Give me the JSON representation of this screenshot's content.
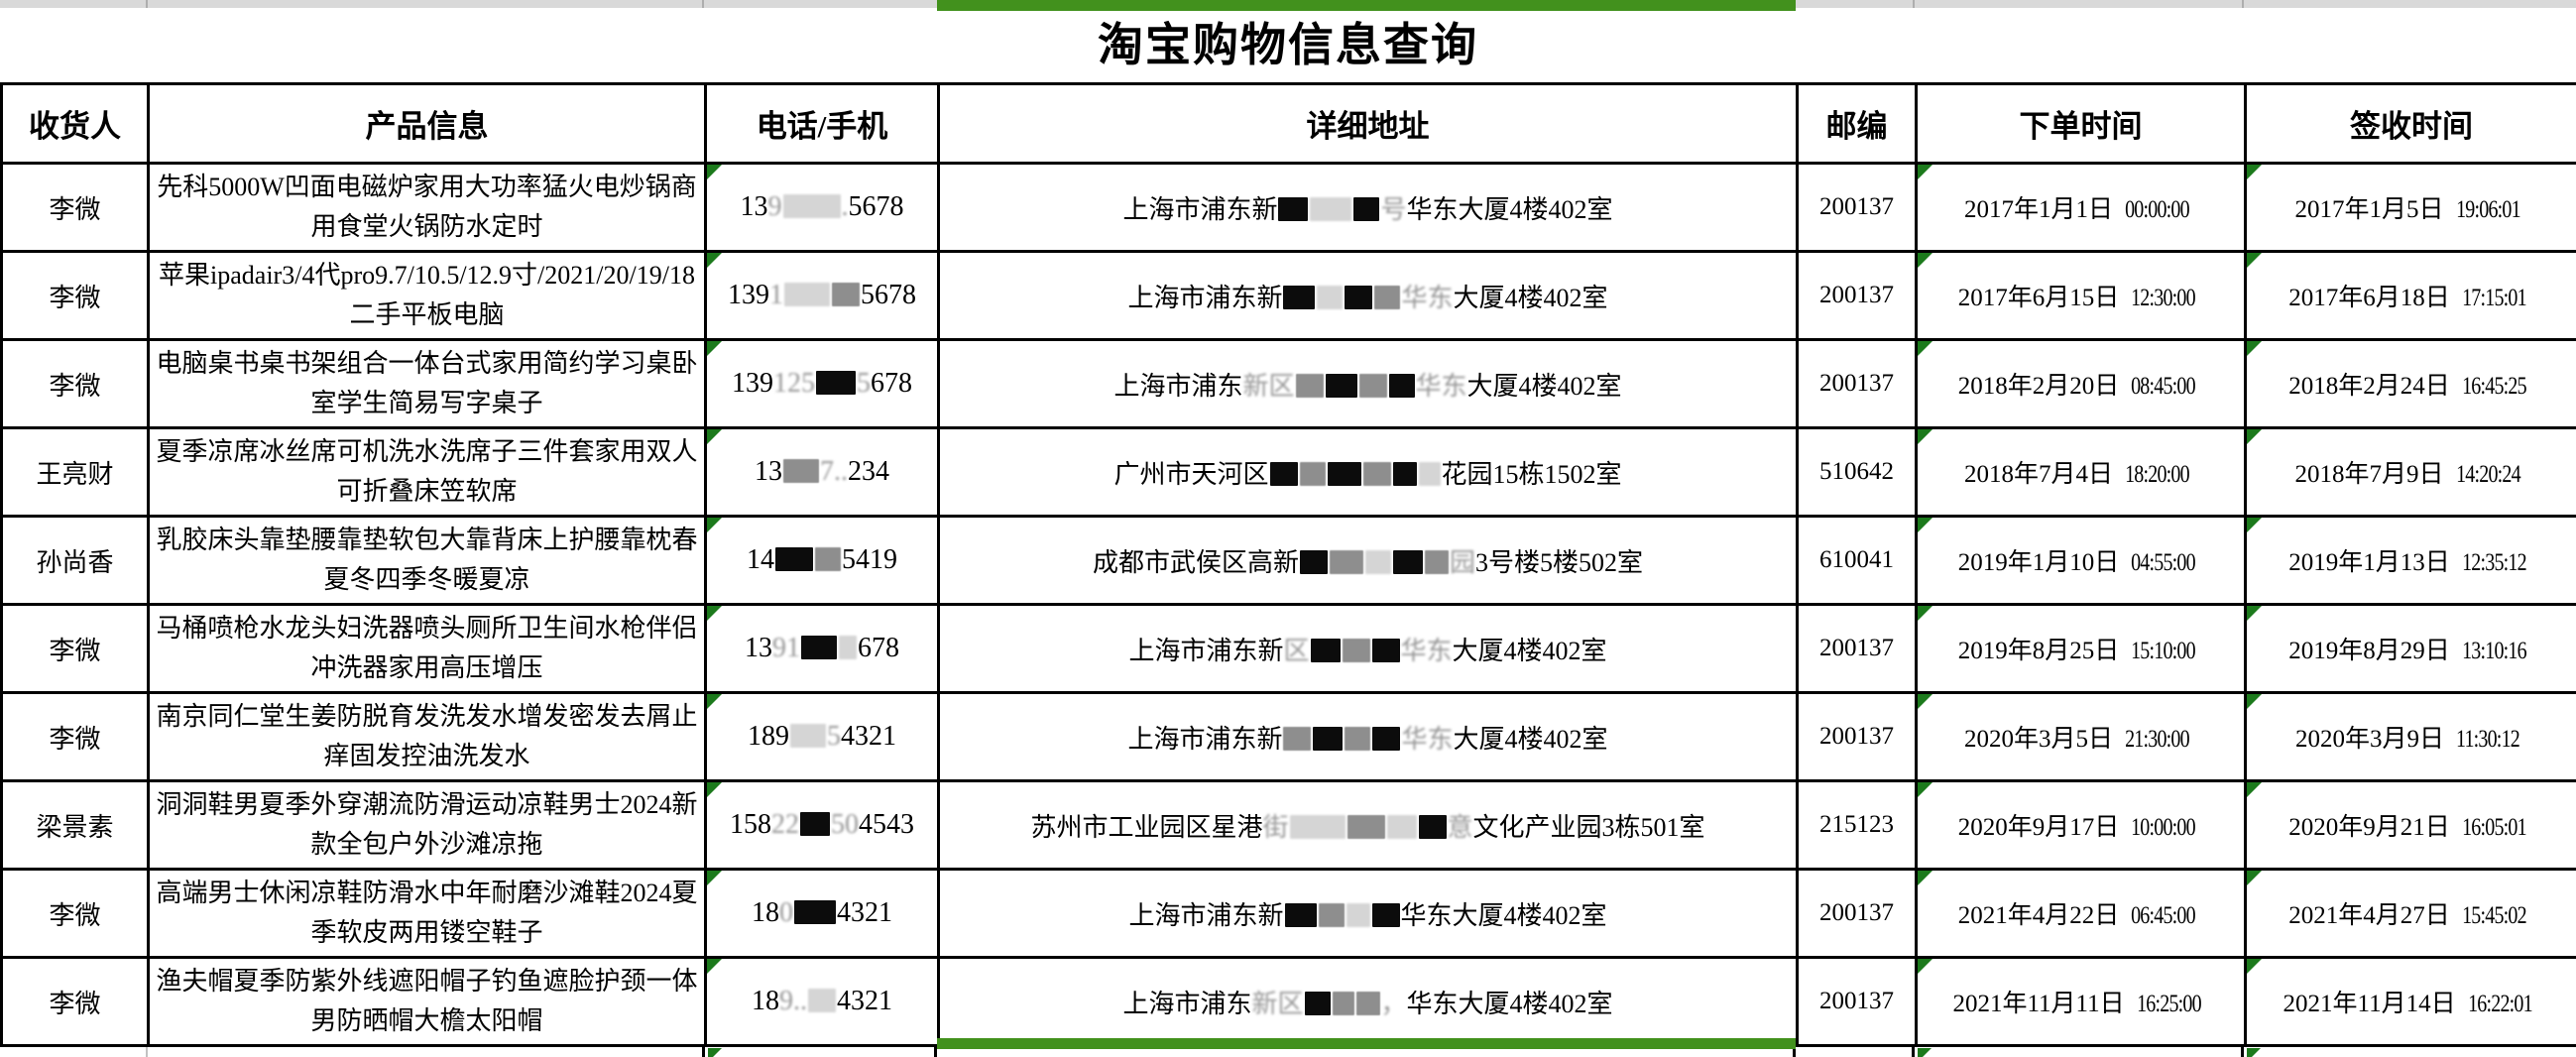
{
  "page": {
    "title": "淘宝购物信息查询"
  },
  "colors": {
    "selection_green": "#42911d",
    "triangle_green": "#1c7a1c",
    "strip_gray": "#d9d9d9",
    "border_black": "#000000"
  },
  "table": {
    "headers": [
      "收货人",
      "产品信息",
      "电话/手机",
      "详细地址",
      "邮编",
      "下单时间",
      "签收时间"
    ],
    "rows": [
      {
        "recipient": "李微",
        "product": "先科5000W凹面电磁炉家用大功率猛火电炒锅商用食堂火锅防水定时",
        "phone": [
          [
            "t",
            "13"
          ],
          [
            "f",
            "9"
          ],
          [
            "b",
            "l",
            58
          ],
          [
            "f",
            "."
          ],
          [
            "t",
            "5678"
          ]
        ],
        "address": [
          [
            "t",
            "上海市浦东新"
          ],
          [
            "b",
            "d",
            30
          ],
          [
            "b",
            "l",
            42
          ],
          [
            "b",
            "d",
            26
          ],
          [
            "f",
            "号"
          ],
          [
            "t",
            "华东大厦4楼402室"
          ]
        ],
        "postal": "200137",
        "order_time": "2017年1月1日 00:00:00",
        "sign_time": "2017年1月5日 19:06:01"
      },
      {
        "recipient": "李微",
        "product": "苹果ipadair3/4代pro9.7/10.5/12.9寸/2021/20/19/18二手平板电脑",
        "phone": [
          [
            "t",
            "139"
          ],
          [
            "f",
            "1"
          ],
          [
            "b",
            "l",
            46
          ],
          [
            "b",
            "g",
            28
          ],
          [
            "t",
            "5678"
          ]
        ],
        "address": [
          [
            "t",
            "上海市浦东新"
          ],
          [
            "b",
            "d",
            32
          ],
          [
            "b",
            "l",
            26
          ],
          [
            "b",
            "d",
            28
          ],
          [
            "b",
            "g",
            26
          ],
          [
            "f",
            "华东"
          ],
          [
            "t",
            "大厦4楼402室"
          ]
        ],
        "postal": "200137",
        "order_time": "2017年6月15日 12:30:00",
        "sign_time": "2017年6月18日 17:15:01"
      },
      {
        "recipient": "李微",
        "product": "电脑桌书桌书架组合一体台式家用简约学习桌卧室学生简易写字桌子",
        "phone": [
          [
            "t",
            "139"
          ],
          [
            "f",
            "125"
          ],
          [
            "b",
            "d",
            40
          ],
          [
            "f",
            "5"
          ],
          [
            "t",
            "678"
          ]
        ],
        "address": [
          [
            "t",
            "上海市浦东"
          ],
          [
            "f",
            "新区"
          ],
          [
            "b",
            "g",
            28
          ],
          [
            "b",
            "d",
            32
          ],
          [
            "b",
            "g",
            28
          ],
          [
            "b",
            "d",
            26
          ],
          [
            "f",
            "华东"
          ],
          [
            "t",
            "大厦4楼402室"
          ]
        ],
        "postal": "200137",
        "order_time": "2018年2月20日 08:45:00",
        "sign_time": "2018年2月24日 16:45:25"
      },
      {
        "recipient": "王亮财",
        "product": "夏季凉席冰丝席可机洗水洗席子三件套家用双人可折叠床笠软席",
        "phone": [
          [
            "t",
            "13"
          ],
          [
            "b",
            "g",
            36
          ],
          [
            "f",
            "7.."
          ],
          [
            "t",
            "234"
          ]
        ],
        "address": [
          [
            "t",
            "广州市天河区"
          ],
          [
            "b",
            "d",
            28
          ],
          [
            "b",
            "g",
            26
          ],
          [
            "b",
            "d",
            34
          ],
          [
            "b",
            "g",
            28
          ],
          [
            "b",
            "d",
            24
          ],
          [
            "b",
            "l",
            22
          ],
          [
            "t",
            "花园15栋1502室"
          ]
        ],
        "postal": "510642",
        "order_time": "2018年7月4日 18:20:00",
        "sign_time": "2018年7月9日 14:20:24"
      },
      {
        "recipient": "孙尚香",
        "product": "乳胶床头靠垫腰靠垫软包大靠背床上护腰靠枕春夏冬四季冬暖夏凉",
        "phone": [
          [
            "t",
            "14"
          ],
          [
            "b",
            "d",
            38
          ],
          [
            "b",
            "g",
            26
          ],
          [
            "t",
            "5419"
          ]
        ],
        "address": [
          [
            "t",
            "成都市武侯区高新"
          ],
          [
            "b",
            "d",
            28
          ],
          [
            "b",
            "g",
            34
          ],
          [
            "b",
            "l",
            26
          ],
          [
            "b",
            "d",
            30
          ],
          [
            "b",
            "g",
            24
          ],
          [
            "f",
            "园"
          ],
          [
            "t",
            "3号楼5楼502室"
          ]
        ],
        "postal": "610041",
        "order_time": "2019年1月10日 04:55:00",
        "sign_time": "2019年1月13日 12:35:12"
      },
      {
        "recipient": "李微",
        "product": "马桶喷枪水龙头妇洗器喷头厕所卫生间水枪伴侣冲洗器家用高压增压",
        "phone": [
          [
            "t",
            "13"
          ],
          [
            "f",
            "91"
          ],
          [
            "b",
            "d",
            36
          ],
          [
            "b",
            "l",
            18
          ],
          [
            "t",
            "678"
          ]
        ],
        "address": [
          [
            "t",
            "上海市浦东新"
          ],
          [
            "f",
            "区"
          ],
          [
            "b",
            "d",
            30
          ],
          [
            "b",
            "g",
            28
          ],
          [
            "b",
            "d",
            28
          ],
          [
            "f",
            "华东"
          ],
          [
            "t",
            "大厦4楼402室"
          ]
        ],
        "postal": "200137",
        "order_time": "2019年8月25日 15:10:00",
        "sign_time": "2019年8月29日 13:10:16"
      },
      {
        "recipient": "李微",
        "product": "南京同仁堂生姜防脱育发洗发水增发密发去屑止痒固发控油洗发水",
        "phone": [
          [
            "t",
            "189"
          ],
          [
            "b",
            "l",
            36
          ],
          [
            "f",
            "5"
          ],
          [
            "t",
            "4321"
          ]
        ],
        "address": [
          [
            "t",
            "上海市浦东新"
          ],
          [
            "b",
            "g",
            28
          ],
          [
            "b",
            "d",
            30
          ],
          [
            "b",
            "g",
            26
          ],
          [
            "b",
            "d",
            28
          ],
          [
            "f",
            "华东"
          ],
          [
            "t",
            "大厦4楼402室"
          ]
        ],
        "postal": "200137",
        "order_time": "2020年3月5日 21:30:00",
        "sign_time": "2020年3月9日 11:30:12"
      },
      {
        "recipient": "梁景素",
        "product": "洞洞鞋男夏季外穿潮流防滑运动凉鞋男士2024新款全包户外沙滩凉拖",
        "phone": [
          [
            "t",
            "158"
          ],
          [
            "f",
            "22"
          ],
          [
            "b",
            "d",
            30
          ],
          [
            "f",
            "50"
          ],
          [
            "t",
            "4543"
          ]
        ],
        "address": [
          [
            "t",
            "苏州市工业园区星港"
          ],
          [
            "f",
            "街"
          ],
          [
            "b",
            "l",
            56
          ],
          [
            "b",
            "g",
            38
          ],
          [
            "b",
            "l",
            30
          ],
          [
            "b",
            "d",
            28
          ],
          [
            "f",
            "意"
          ],
          [
            "t",
            "文化产业园3栋501室"
          ]
        ],
        "postal": "215123",
        "order_time": "2020年9月17日 10:00:00",
        "sign_time": "2020年9月21日 16:05:01"
      },
      {
        "recipient": "李微",
        "product": "高端男士休闲凉鞋防滑水中年耐磨沙滩鞋2024夏季软皮两用镂空鞋子",
        "phone": [
          [
            "t",
            "18"
          ],
          [
            "f",
            "0"
          ],
          [
            "b",
            "d",
            42
          ],
          [
            "t",
            "4321"
          ]
        ],
        "address": [
          [
            "t",
            "上海市浦东新"
          ],
          [
            "b",
            "d",
            32
          ],
          [
            "b",
            "g",
            26
          ],
          [
            "b",
            "l",
            24
          ],
          [
            "b",
            "d",
            28
          ],
          [
            "t",
            "华东大厦4楼402室"
          ]
        ],
        "postal": "200137",
        "order_time": "2021年4月22日 06:45:00",
        "sign_time": "2021年4月27日 15:45:02"
      },
      {
        "recipient": "李微",
        "product": "渔夫帽夏季防紫外线遮阳帽子钓鱼遮脸护颈一体男防晒帽大檐太阳帽",
        "phone": [
          [
            "t",
            "18"
          ],
          [
            "f",
            "9.."
          ],
          [
            "b",
            "l",
            28
          ],
          [
            "t",
            "4321"
          ]
        ],
        "address": [
          [
            "t",
            "上海市浦东"
          ],
          [
            "f",
            "新区"
          ],
          [
            "b",
            "d",
            26
          ],
          [
            "b",
            "g",
            22
          ],
          [
            "b",
            "g",
            24
          ],
          [
            "f",
            "，"
          ],
          [
            "t",
            "华东大厦4楼402室"
          ]
        ],
        "postal": "200137",
        "order_time": "2021年11月11日 16:25:00",
        "sign_time": "2021年11月14日 16:22:01"
      }
    ]
  }
}
